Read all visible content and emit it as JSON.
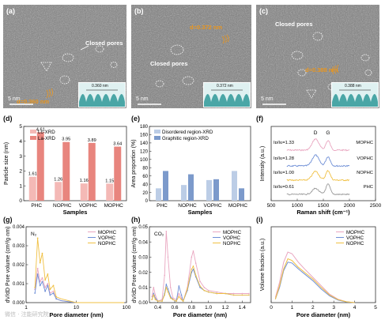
{
  "tem": [
    {
      "label": "(a)",
      "pores": "Closed pores",
      "d": "d=0.360 nm",
      "inset": "0.360 nm",
      "scale": "5 nm"
    },
    {
      "label": "(b)",
      "pores": "Closed pores",
      "d": "d=0.372 nm",
      "inset": "0.372 nm",
      "scale": "5 nm"
    },
    {
      "label": "(c)",
      "pores": "Closed pores",
      "d": "d=0.388 nm",
      "inset": "0.388 nm",
      "scale": "5 nm"
    }
  ],
  "colors": {
    "pink": "#f4b9b6",
    "red": "#e8857e",
    "lightblue": "#bccde6",
    "blue": "#7c9acb",
    "teal": "#4aa6a6",
    "mophc": "#e9a6c0",
    "vophc": "#6f8fd6",
    "nophc": "#f0c043",
    "phc": "#9a9a9a",
    "dlabel": "#e9961f"
  },
  "panels": {
    "d": {
      "label": "(d)",
      "chart_data": {
        "type": "bar",
        "title": "",
        "ylabel": "Particle size (nm)",
        "xlabel": "Samples",
        "categories": [
          "PHC",
          "NOPHC",
          "VOPHC",
          "MOPHC"
        ],
        "ylim": [
          0,
          5
        ],
        "yticks": [
          "0",
          "1",
          "2",
          "3",
          "4",
          "5"
        ],
        "series": [
          {
            "name": "Lc-XRD",
            "values": [
              1.61,
              1.26,
              1.16,
              1.15
            ],
            "labels": [
              "1.61",
              "1.26",
              "1.16",
              "1.15"
            ]
          },
          {
            "name": "La-XRD",
            "values": [
              4.61,
              3.95,
              3.89,
              3.64
            ],
            "labels": [
              "4.61",
              "3.95",
              "3.89",
              "3.64"
            ]
          }
        ]
      }
    },
    "e": {
      "label": "(e)",
      "chart_data": {
        "type": "bar",
        "title": "",
        "ylabel": "Area proportion (%)",
        "xlabel": "Samples",
        "categories": [
          "PHC",
          "NOPHC",
          "VOPHC",
          "MOPHC"
        ],
        "ylim": [
          0,
          180
        ],
        "yticks": [
          "0",
          "20",
          "40",
          "60",
          "80",
          "100",
          "120",
          "140",
          "160",
          "180"
        ],
        "series": [
          {
            "name": "Disordered region-XRD",
            "values": [
              30,
              38,
              50,
              72
            ]
          },
          {
            "name": "Graphitic region-XRD",
            "values": [
              72,
              64,
              52,
              30
            ]
          }
        ]
      }
    },
    "f": {
      "label": "(f)",
      "chart_data": {
        "type": "line",
        "title": "",
        "ylabel": "Intensity (a.u.)",
        "xlabel": "Raman shift (cm⁻¹)",
        "xlim": [
          500,
          2500
        ],
        "xticks": [
          "500",
          "1000",
          "1500",
          "2000",
          "2500"
        ],
        "peaks": [
          "D",
          "G"
        ],
        "series": [
          {
            "name": "MOPHC",
            "ratio": "Iᴅ/Iɢ=1.33"
          },
          {
            "name": "VOPHC",
            "ratio": "Iᴅ/Iɢ=1.28"
          },
          {
            "name": "NOPHC",
            "ratio": "Iᴅ/Iɢ=1.00"
          },
          {
            "name": "PHC",
            "ratio": "Iᴅ/Iɢ=0.61"
          }
        ]
      }
    },
    "g": {
      "label": "(g)",
      "chart_data": {
        "type": "line",
        "title": "",
        "ylabel": "dV/dD Pore volume (cm³/g·nm)",
        "xlabel": "Pore diameter (nm)",
        "annotation": "N₂",
        "xscale": "log",
        "xlim": [
          1,
          100
        ],
        "xticks": [
          "1",
          "10",
          "100"
        ],
        "ylim": [
          0,
          0.004
        ],
        "yticks": [
          "0.000",
          "0.001",
          "0.002",
          "0.003",
          "0.004"
        ],
        "series": [
          {
            "name": "MOPHC",
            "x": [
              1.5,
              1.7,
              1.9,
              2.1,
              2.4,
              2.7,
              3.0,
              3.5,
              4.0,
              5,
              7,
              10,
              20,
              50,
              90
            ],
            "y": [
              0.0007,
              0.0018,
              0.0011,
              0.0013,
              0.0008,
              0.001,
              0.0005,
              0.0006,
              0.0002,
              0.0001,
              5e-05,
              0,
              0,
              0,
              0
            ]
          },
          {
            "name": "VOPHC",
            "x": [
              1.5,
              1.7,
              1.9,
              2.1,
              2.4,
              2.7,
              3.0,
              3.5,
              4.0,
              5,
              7,
              10,
              20,
              50,
              90
            ],
            "y": [
              0.0005,
              0.0015,
              0.0009,
              0.0011,
              0.0006,
              0.0009,
              0.0004,
              0.0005,
              0.0002,
              0.0001,
              5e-05,
              0,
              0,
              0,
              0
            ]
          },
          {
            "name": "NOPHC",
            "x": [
              1.5,
              1.7,
              1.9,
              2.1,
              2.4,
              2.7,
              3.0,
              3.5,
              4.0,
              5,
              7,
              10,
              20,
              50,
              90
            ],
            "y": [
              0.0008,
              0.0034,
              0.0021,
              0.0026,
              0.0012,
              0.0015,
              0.0007,
              0.0009,
              0.0003,
              0.0002,
              0.0001,
              0,
              0,
              0,
              0
            ]
          }
        ]
      }
    },
    "h": {
      "label": "(h)",
      "chart_data": {
        "type": "line",
        "title": "",
        "ylabel": "dV/dD Pore volume (cm³/g·nm)",
        "xlabel": "Pore diameter (nm)",
        "annotation": "CO₂",
        "xlim": [
          0.3,
          1.5
        ],
        "xticks": [
          "0.4",
          "0.6",
          "0.8",
          "1.0",
          "1.2",
          "1.4"
        ],
        "ylim": [
          0,
          0.05
        ],
        "yticks": [
          "0.00",
          "0.01",
          "0.02",
          "0.03",
          "0.04",
          "0.05"
        ],
        "series": [
          {
            "name": "MOPHC",
            "x": [
              0.33,
              0.35,
              0.37,
              0.4,
              0.45,
              0.48,
              0.5,
              0.52,
              0.55,
              0.58,
              0.62,
              0.65,
              0.68,
              0.7,
              0.75,
              0.8,
              0.82,
              0.85,
              0.9,
              0.95,
              1.0,
              1.1,
              1.2,
              1.3,
              1.4,
              1.48
            ],
            "y": [
              0.004,
              0.01,
              0.005,
              0.001,
              0.002,
              0.018,
              0.047,
              0.03,
              0.01,
              0.003,
              0.002,
              0.006,
              0.003,
              0.001,
              0.01,
              0.03,
              0.034,
              0.026,
              0.014,
              0.01,
              0.008,
              0.007,
              0.006,
              0.006,
              0.006,
              0.006
            ]
          },
          {
            "name": "VOPHC",
            "x": [
              0.33,
              0.35,
              0.37,
              0.4,
              0.45,
              0.48,
              0.5,
              0.52,
              0.55,
              0.58,
              0.62,
              0.65,
              0.68,
              0.7,
              0.75,
              0.8,
              0.82,
              0.85,
              0.9,
              0.95,
              1.0,
              1.1,
              1.2,
              1.3,
              1.4,
              1.48
            ],
            "y": [
              0.002,
              0.006,
              0.003,
              0.001,
              0.001,
              0.006,
              0.012,
              0.009,
              0.004,
              0.002,
              0.001,
              0.011,
              0.005,
              0.001,
              0.008,
              0.02,
              0.022,
              0.017,
              0.01,
              0.008,
              0.007,
              0.006,
              0.006,
              0.005,
              0.005,
              0.005
            ]
          },
          {
            "name": "NOPHC",
            "x": [
              0.33,
              0.35,
              0.37,
              0.4,
              0.45,
              0.48,
              0.5,
              0.52,
              0.55,
              0.58,
              0.62,
              0.65,
              0.68,
              0.7,
              0.75,
              0.8,
              0.82,
              0.85,
              0.9,
              0.95,
              1.0,
              1.1,
              1.2,
              1.3,
              1.4,
              1.48
            ],
            "y": [
              0.002,
              0.005,
              0.002,
              0.001,
              0.001,
              0.005,
              0.01,
              0.007,
              0.003,
              0.002,
              0.001,
              0.004,
              0.002,
              0.001,
              0.009,
              0.022,
              0.024,
              0.018,
              0.011,
              0.008,
              0.007,
              0.006,
              0.006,
              0.005,
              0.005,
              0.005
            ]
          }
        ]
      }
    },
    "i": {
      "label": "(i)",
      "chart_data": {
        "type": "line",
        "title": "",
        "ylabel": "Volume fraction (a.u.)",
        "xlabel": "Pore diameter (nm)",
        "xlim": [
          0,
          5
        ],
        "xticks": [
          "0",
          "1",
          "2",
          "3",
          "4",
          "5"
        ],
        "series": [
          {
            "name": "MOPHC",
            "x": [
              0.2,
              0.4,
              0.6,
              0.8,
              1.0,
              1.3,
              1.6,
              2.0,
              2.4,
              2.8,
              3.2,
              3.6,
              4.0
            ],
            "y": [
              0.03,
              0.12,
              0.24,
              0.3,
              0.29,
              0.24,
              0.2,
              0.15,
              0.1,
              0.05,
              0.02,
              0.005,
              0
            ]
          },
          {
            "name": "VOPHC",
            "x": [
              0.2,
              0.4,
              0.6,
              0.8,
              1.0,
              1.3,
              1.6,
              2.0,
              2.4,
              2.8,
              3.2,
              3.6,
              4.0
            ],
            "y": [
              0.02,
              0.09,
              0.19,
              0.24,
              0.235,
              0.2,
              0.17,
              0.13,
              0.08,
              0.04,
              0.015,
              0.004,
              0
            ]
          },
          {
            "name": "NOPHC",
            "x": [
              0.2,
              0.4,
              0.6,
              0.8,
              1.0,
              1.3,
              1.6,
              2.0,
              2.4,
              2.8,
              3.2,
              3.6,
              4.0
            ],
            "y": [
              0.02,
              0.1,
              0.2,
              0.26,
              0.25,
              0.21,
              0.18,
              0.14,
              0.09,
              0.045,
              0.018,
              0.005,
              0
            ]
          }
        ]
      }
    }
  },
  "watermark": "微信 · 注能研究院"
}
